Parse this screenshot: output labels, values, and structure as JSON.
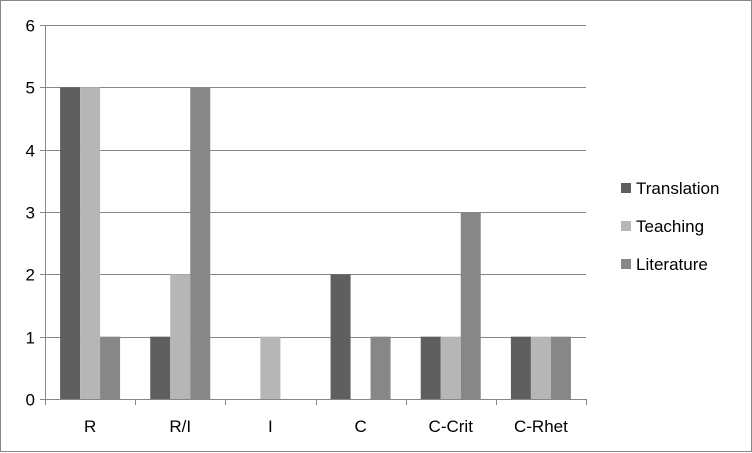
{
  "chart_data": {
    "type": "bar",
    "title": "",
    "xlabel": "",
    "ylabel": "",
    "categories": [
      "R",
      "R/I",
      "I",
      "C",
      "C-Crit",
      "C-Rhet"
    ],
    "series": [
      {
        "name": "Translation",
        "values": [
          5,
          1,
          0,
          2,
          1,
          1
        ],
        "color": "#5f5f5f"
      },
      {
        "name": "Teaching",
        "values": [
          5,
          2,
          1,
          0,
          1,
          1
        ],
        "color": "#b6b6b6"
      },
      {
        "name": "Literature",
        "values": [
          1,
          5,
          0,
          1,
          3,
          1
        ],
        "color": "#878787"
      }
    ],
    "ylim": [
      0,
      6
    ],
    "yticks": [
      0,
      1,
      2,
      3,
      4,
      5,
      6
    ],
    "grid": true,
    "legend_position": "right"
  }
}
